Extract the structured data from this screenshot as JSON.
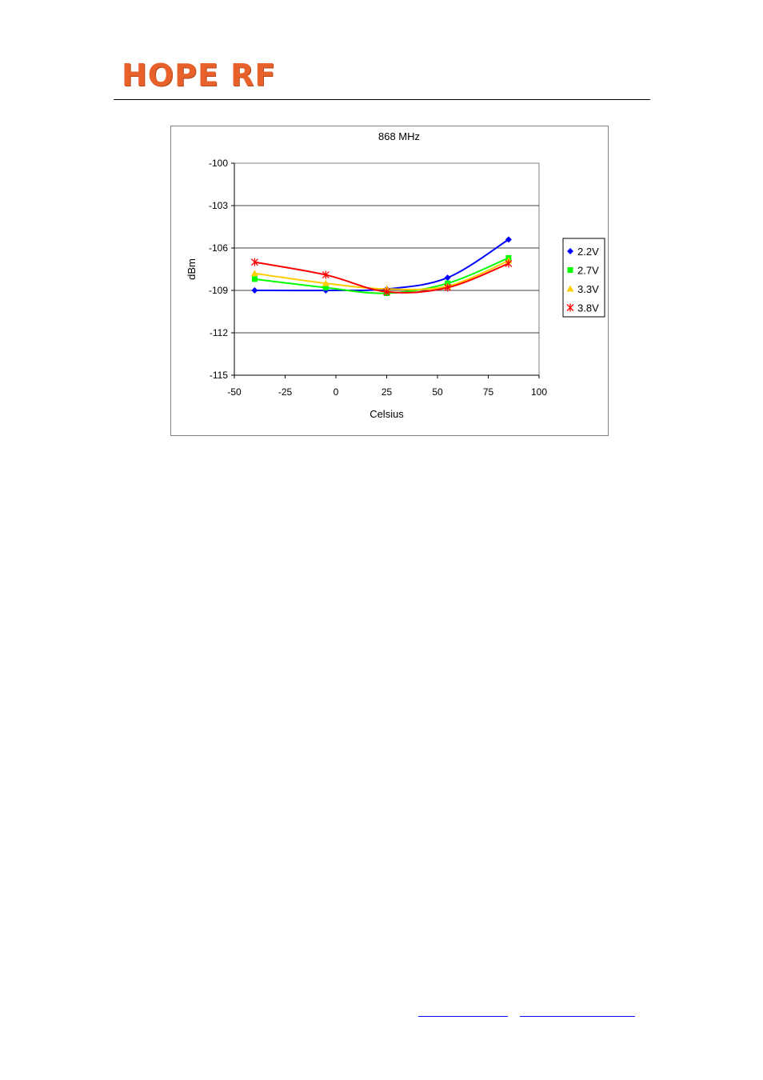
{
  "header": {
    "logo_text": "HOPE RF",
    "logo_color": "#e8612a"
  },
  "chart_data": {
    "type": "line",
    "title": "868 MHz",
    "xlabel": "Celsius",
    "ylabel": "dBm",
    "xlim": [
      -50,
      100
    ],
    "ylim": [
      -115,
      -100
    ],
    "xticks": [
      "-50",
      "-25",
      "0",
      "25",
      "50",
      "75",
      "100"
    ],
    "yticks": [
      "-100",
      "-103",
      "-106",
      "-109",
      "-112",
      "-115"
    ],
    "grid": "horizontal",
    "legend": "right",
    "series": [
      {
        "name": "2.2V",
        "color": "#0000ff",
        "marker": "diamond",
        "x": [
          -40,
          -5,
          25,
          55,
          85
        ],
        "y": [
          -109.0,
          -109.0,
          -108.9,
          -108.1,
          -105.4
        ]
      },
      {
        "name": "2.7V",
        "color": "#00ff00",
        "marker": "square",
        "x": [
          -40,
          -5,
          25,
          55,
          85
        ],
        "y": [
          -108.2,
          -108.8,
          -109.2,
          -108.5,
          -106.7
        ]
      },
      {
        "name": "3.3V",
        "color": "#ffcc00",
        "marker": "triangle",
        "x": [
          -40,
          -5,
          25,
          55,
          85
        ],
        "y": [
          -107.8,
          -108.5,
          -108.9,
          -108.7,
          -106.9
        ]
      },
      {
        "name": "3.8V",
        "color": "#ff0000",
        "marker": "star",
        "x": [
          -40,
          -5,
          25,
          55,
          85
        ],
        "y": [
          -107.0,
          -107.9,
          -109.1,
          -108.8,
          -107.1
        ]
      }
    ]
  }
}
